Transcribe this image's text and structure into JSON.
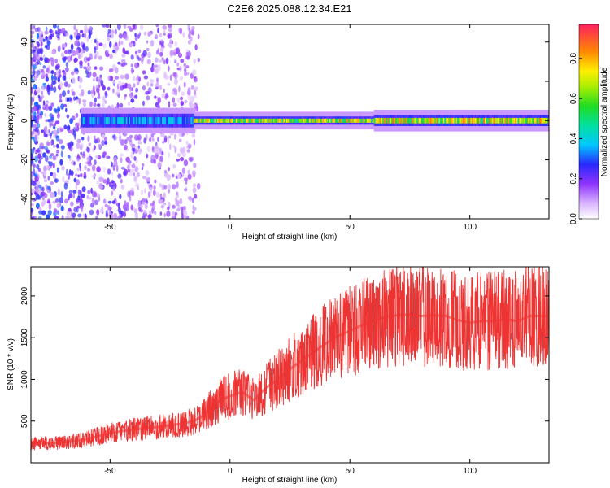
{
  "title": "C2E6.2025.088.12.34.E21",
  "chart_data": [
    {
      "type": "heatmap",
      "xlabel": "Height of straight line (km)",
      "ylabel": "Frequency (Hz)",
      "xlim": [
        -83,
        133
      ],
      "ylim": [
        -50,
        49
      ],
      "xticks": [
        -50,
        0,
        50,
        100
      ],
      "yticks": [
        -40,
        -20,
        0,
        20,
        40
      ],
      "colorbar": {
        "label": "Normalized spectral amplitude",
        "range": [
          0,
          0.97
        ],
        "ticks": [
          0.0,
          0.2,
          0.4,
          0.6,
          0.8
        ]
      },
      "band": {
        "center_hz": 0,
        "segments": [
          {
            "x_start": -62,
            "x_end": -15,
            "halfwidth_hz": 5,
            "peak_amplitude": 0.45
          },
          {
            "x_start": -15,
            "x_end": 60,
            "halfwidth_hz": 3,
            "peak_amplitude": 0.85
          },
          {
            "x_start": 60,
            "x_end": 133,
            "halfwidth_hz": 4,
            "peak_amplitude": 0.9
          }
        ]
      },
      "noise_region_x": [
        -83,
        -13
      ]
    },
    {
      "type": "line",
      "xlabel": "Height of straight line (km)",
      "ylabel": "SNR (10 * v/v)",
      "xlim": [
        -83,
        133
      ],
      "ylim": [
        0,
        2350
      ],
      "xticks": [
        -50,
        0,
        50,
        100
      ],
      "yticks": [
        500,
        1000,
        1500,
        2000
      ],
      "color": "#ee3333",
      "series": [
        {
          "x": [
            -83,
            -70,
            -60,
            -50,
            -40,
            -30,
            -20,
            -15,
            -12,
            -8,
            -4,
            0,
            5,
            10,
            15,
            20,
            25,
            30,
            35,
            40,
            45,
            50,
            55,
            60,
            65,
            70,
            75,
            80,
            85,
            90,
            95,
            100,
            105,
            110,
            115,
            120,
            125,
            133
          ],
          "y": [
            230,
            240,
            280,
            360,
            400,
            430,
            470,
            500,
            550,
            650,
            750,
            800,
            850,
            750,
            900,
            1000,
            1120,
            1230,
            1330,
            1430,
            1520,
            1580,
            1650,
            1700,
            1750,
            1770,
            1780,
            1760,
            1770,
            1760,
            1710,
            1680,
            1700,
            1700,
            1720,
            1700,
            1760,
            1760
          ]
        }
      ]
    }
  ]
}
